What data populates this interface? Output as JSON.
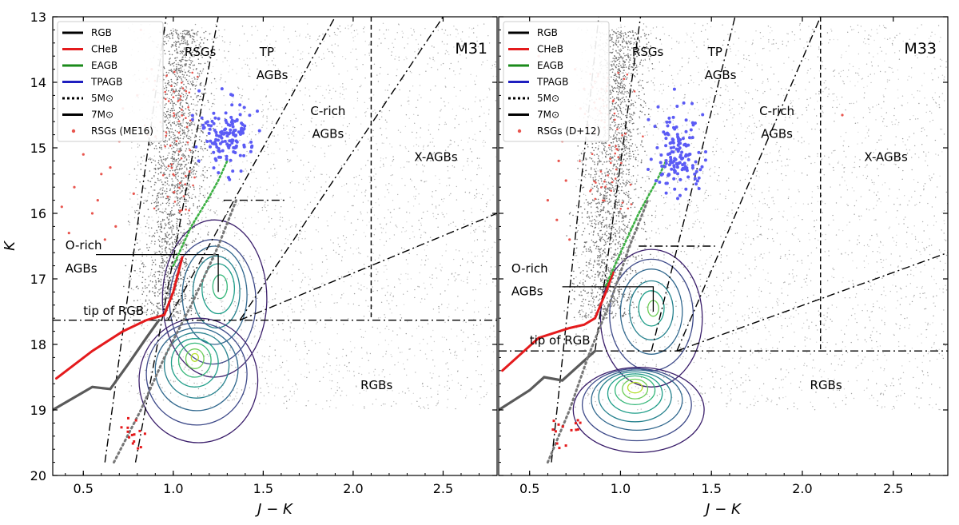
{
  "chart_data": [
    {
      "type": "scatter",
      "panel_label": "M31",
      "xlabel": "J − K",
      "ylabel": "K",
      "xlim": [
        0.33,
        2.8
      ],
      "ylim": [
        20,
        13
      ],
      "y_inverted": true,
      "xticks": [
        0.5,
        1.0,
        1.5,
        2.0,
        2.5
      ],
      "xtick_labels": [
        "0.5",
        "1.0",
        "1.5",
        "2.0",
        "2.5"
      ],
      "yticks": [
        13,
        14,
        15,
        16,
        17,
        18,
        19,
        20
      ],
      "ytick_labels": [
        "13",
        "14",
        "15",
        "16",
        "17",
        "18",
        "19",
        "20"
      ],
      "legend": {
        "position": "top-left",
        "entries": [
          {
            "label": "RGB",
            "style": "solid",
            "color": "#000000"
          },
          {
            "label": "CHeB",
            "style": "solid",
            "color": "#e41a1c"
          },
          {
            "label": "EAGB",
            "style": "solid",
            "color": "#1a8a1a"
          },
          {
            "label": "TPAGB",
            "style": "solid",
            "color": "#1f1fbf"
          },
          {
            "label": "5M⊙",
            "style": "dotted",
            "color": "#000000"
          },
          {
            "label": "7M⊙",
            "style": "solid",
            "color": "#000000"
          },
          {
            "label": "RSGs (ME16)",
            "style": "marker",
            "color": "#e8554e"
          }
        ]
      },
      "region_labels": [
        {
          "text": "RSGs",
          "x": 1.15,
          "y": 13.6
        },
        {
          "text": "TP",
          "x": 1.52,
          "y": 13.6
        },
        {
          "text": "AGBs",
          "x": 1.55,
          "y": 13.95
        },
        {
          "text": "C-rich",
          "x": 1.86,
          "y": 14.5
        },
        {
          "text": "AGBs",
          "x": 1.86,
          "y": 14.85
        },
        {
          "text": "X-AGBs",
          "x": 2.46,
          "y": 15.2
        },
        {
          "text": "O-rich",
          "x": 0.4,
          "y": 16.55
        },
        {
          "text": "AGBs",
          "x": 0.4,
          "y": 16.9
        },
        {
          "text": "tip of RGB",
          "x": 0.5,
          "y": 17.55
        },
        {
          "text": "RGBs",
          "x": 2.13,
          "y": 18.68
        }
      ],
      "boundaries": {
        "tip_of_rgb_K": 17.63,
        "x_agb_color_cut": 2.1,
        "o_rich_agb_marker": {
          "x": [
            0.57,
            1.25
          ],
          "y": [
            16.63,
            16.63
          ],
          "drop_to_K": 17.2
        },
        "rsg_tpagb_separator": {
          "x": [
            1.28,
            1.62
          ],
          "y": [
            15.8,
            15.8
          ]
        },
        "dashdot_lines": [
          {
            "x": [
              0.62,
              0.96
            ],
            "y": [
              19.8,
              13.0
            ]
          },
          {
            "x": [
              0.79,
              1.25
            ],
            "y": [
              19.8,
              13.0
            ]
          },
          {
            "x": [
              0.97,
              1.9
            ],
            "y": [
              17.63,
              13.0
            ]
          },
          {
            "x": [
              1.37,
              2.5
            ],
            "y": [
              17.63,
              13.0
            ]
          },
          {
            "x": [
              1.37,
              2.8
            ],
            "y": [
              17.63,
              16.0
            ]
          }
        ]
      },
      "isochrones": {
        "RGB": {
          "x": [
            0.33,
            0.55,
            0.65,
            0.75,
            0.85,
            0.92
          ],
          "y": [
            19.0,
            18.65,
            18.68,
            18.3,
            17.9,
            17.63
          ]
        },
        "CHeB": {
          "x": [
            0.35,
            0.55,
            0.72,
            0.85,
            0.95,
            1.0,
            1.05
          ],
          "y": [
            18.52,
            18.1,
            17.8,
            17.63,
            17.55,
            17.2,
            16.67
          ]
        },
        "EAGB": {
          "x": [
            1.0,
            1.1,
            1.2,
            1.25,
            1.3
          ],
          "y": [
            16.8,
            16.2,
            15.75,
            15.5,
            15.2
          ]
        },
        "TPAGB": {
          "x": [
            1.28,
            1.35,
            1.42,
            1.45
          ],
          "y": [
            14.55,
            14.9,
            15.1,
            14.6
          ]
        },
        "5Msun_dotted": {
          "x": [
            0.67,
            0.82,
            0.95,
            1.1,
            1.25,
            1.35
          ],
          "y": [
            19.8,
            19.0,
            18.2,
            17.4,
            16.5,
            15.8
          ]
        }
      },
      "density_contours": [
        {
          "level": 1,
          "color": "#3b1f6b",
          "center": [
            1.23,
            17.3
          ],
          "rx": 0.29,
          "ry": 1.2
        },
        {
          "level": 2,
          "color": "#3e4a89",
          "center": [
            1.22,
            17.35
          ],
          "rx": 0.24,
          "ry": 0.95
        },
        {
          "level": 3,
          "color": "#31688e",
          "center": [
            1.23,
            17.25
          ],
          "rx": 0.18,
          "ry": 0.75
        },
        {
          "level": 4,
          "color": "#26828e",
          "center": [
            1.24,
            17.2
          ],
          "rx": 0.13,
          "ry": 0.55
        },
        {
          "level": 5,
          "color": "#1f9e89",
          "center": [
            1.25,
            17.15
          ],
          "rx": 0.09,
          "ry": 0.38
        },
        {
          "level": 6,
          "color": "#35b779",
          "center": [
            1.26,
            17.12
          ],
          "rx": 0.04,
          "ry": 0.18
        },
        {
          "level": 1,
          "color": "#3b1f6b",
          "center": [
            1.14,
            18.55
          ],
          "rx": 0.33,
          "ry": 0.95
        },
        {
          "level": 2,
          "color": "#3e4a89",
          "center": [
            1.13,
            18.45
          ],
          "rx": 0.28,
          "ry": 0.78
        },
        {
          "level": 3,
          "color": "#31688e",
          "center": [
            1.13,
            18.38
          ],
          "rx": 0.23,
          "ry": 0.63
        },
        {
          "level": 4,
          "color": "#26828e",
          "center": [
            1.13,
            18.32
          ],
          "rx": 0.18,
          "ry": 0.5
        },
        {
          "level": 5,
          "color": "#1f9e89",
          "center": [
            1.12,
            18.28
          ],
          "rx": 0.13,
          "ry": 0.37
        },
        {
          "level": 6,
          "color": "#35b779",
          "center": [
            1.12,
            18.24
          ],
          "rx": 0.09,
          "ry": 0.26
        },
        {
          "level": 7,
          "color": "#6ece58",
          "center": [
            1.12,
            18.22
          ],
          "rx": 0.05,
          "ry": 0.15
        },
        {
          "level": 8,
          "color": "#b5de2b",
          "center": [
            1.12,
            18.2
          ],
          "rx": 0.02,
          "ry": 0.06
        }
      ],
      "tpagb_clump": {
        "center": [
          1.3,
          14.8
        ],
        "spread": [
          0.07,
          0.25
        ]
      },
      "rsg_points": [
        [
          0.45,
          15.6
        ],
        [
          0.55,
          16.0
        ],
        [
          0.6,
          15.4
        ],
        [
          0.38,
          15.9
        ],
        [
          0.5,
          15.1
        ],
        [
          0.7,
          14.9
        ],
        [
          0.65,
          15.3
        ],
        [
          0.72,
          14.4
        ],
        [
          0.8,
          14.2
        ],
        [
          0.78,
          15.7
        ],
        [
          0.82,
          13.2
        ],
        [
          0.42,
          16.3
        ],
        [
          0.58,
          15.8
        ],
        [
          0.68,
          16.2
        ],
        [
          0.62,
          16.4
        ],
        [
          0.88,
          13.8
        ]
      ],
      "field_density": {
        "min_x": 0.75,
        "max_x": 2.8,
        "min_y": 13.1,
        "max_y": 19.0
      }
    },
    {
      "type": "scatter",
      "panel_label": "M33",
      "xlabel": "J − K",
      "ylabel": "K",
      "xlim": [
        0.33,
        2.8
      ],
      "ylim": [
        20,
        13
      ],
      "y_inverted": true,
      "xticks": [
        0.5,
        1.0,
        1.5,
        2.0,
        2.5
      ],
      "xtick_labels": [
        "0.5",
        "1.0",
        "1.5",
        "2.0",
        "2.5"
      ],
      "yticks": [
        13,
        14,
        15,
        16,
        17,
        18,
        19,
        20
      ],
      "ytick_labels": [
        "13",
        "14",
        "15",
        "16",
        "17",
        "18",
        "19",
        "20"
      ],
      "legend": {
        "position": "top-left",
        "entries": [
          {
            "label": "RGB",
            "style": "solid",
            "color": "#000000"
          },
          {
            "label": "CHeB",
            "style": "solid",
            "color": "#e41a1c"
          },
          {
            "label": "EAGB",
            "style": "solid",
            "color": "#1a8a1a"
          },
          {
            "label": "TPAGB",
            "style": "solid",
            "color": "#1f1fbf"
          },
          {
            "label": "5M⊙",
            "style": "dotted",
            "color": "#000000"
          },
          {
            "label": "7M⊙",
            "style": "solid",
            "color": "#000000"
          },
          {
            "label": "RSGs (D+12)",
            "style": "marker",
            "color": "#e8554e"
          }
        ]
      },
      "region_labels": [
        {
          "text": "RSGs",
          "x": 1.15,
          "y": 13.6
        },
        {
          "text": "TP",
          "x": 1.52,
          "y": 13.6
        },
        {
          "text": "AGBs",
          "x": 1.55,
          "y": 13.95
        },
        {
          "text": "C-rich",
          "x": 1.86,
          "y": 14.5
        },
        {
          "text": "AGBs",
          "x": 1.86,
          "y": 14.85
        },
        {
          "text": "X-AGBs",
          "x": 2.46,
          "y": 15.2
        },
        {
          "text": "O-rich",
          "x": 0.4,
          "y": 16.9
        },
        {
          "text": "AGBs",
          "x": 0.4,
          "y": 17.25
        },
        {
          "text": "tip of RGB",
          "x": 0.5,
          "y": 18.0
        },
        {
          "text": "RGBs",
          "x": 2.13,
          "y": 18.68
        }
      ],
      "boundaries": {
        "tip_of_rgb_K": 18.1,
        "x_agb_color_cut": 2.1,
        "o_rich_agb_marker": {
          "x": [
            0.68,
            1.18
          ],
          "y": [
            17.12,
            17.12
          ],
          "drop_to_K": 17.5
        },
        "rsg_tpagb_separator": {
          "x": [
            1.1,
            1.52
          ],
          "y": [
            16.5,
            16.5
          ]
        },
        "dashdot_lines": [
          {
            "x": [
              0.62,
              0.88
            ],
            "y": [
              19.8,
              13.0
            ]
          },
          {
            "x": [
              0.86,
              1.11
            ],
            "y": [
              18.1,
              13.0
            ]
          },
          {
            "x": [
              1.17,
              1.63
            ],
            "y": [
              18.1,
              13.0
            ]
          },
          {
            "x": [
              1.31,
              2.1
            ],
            "y": [
              18.1,
              13.0
            ]
          },
          {
            "x": [
              1.31,
              2.8
            ],
            "y": [
              18.1,
              16.6
            ]
          }
        ]
      },
      "isochrones": {
        "RGB": {
          "x": [
            0.33,
            0.5,
            0.58,
            0.68,
            0.78,
            0.86
          ],
          "y": [
            19.0,
            18.7,
            18.5,
            18.55,
            18.3,
            18.1
          ]
        },
        "CHeB": {
          "x": [
            0.35,
            0.55,
            0.72,
            0.8,
            0.86,
            0.92,
            0.96
          ],
          "y": [
            18.4,
            17.9,
            17.75,
            17.7,
            17.6,
            17.2,
            16.9
          ]
        },
        "EAGB": {
          "x": [
            0.92,
            1.0,
            1.1,
            1.2,
            1.25
          ],
          "y": [
            17.1,
            16.6,
            16.0,
            15.5,
            15.2
          ]
        },
        "TPAGB": {
          "x": [
            1.22,
            1.3,
            1.38,
            1.45
          ],
          "y": [
            14.65,
            15.0,
            15.2,
            15.3
          ]
        },
        "5Msun_dotted": {
          "x": [
            0.6,
            0.72,
            0.82,
            0.95,
            1.05,
            1.15
          ],
          "y": [
            19.8,
            19.0,
            18.2,
            17.3,
            16.5,
            15.8
          ]
        }
      },
      "density_contours": [
        {
          "level": 1,
          "color": "#3b1f6b",
          "center": [
            1.17,
            17.6
          ],
          "rx": 0.28,
          "ry": 1.05
        },
        {
          "level": 2,
          "color": "#3e4a89",
          "center": [
            1.17,
            17.55
          ],
          "rx": 0.23,
          "ry": 0.85
        },
        {
          "level": 3,
          "color": "#31688e",
          "center": [
            1.17,
            17.5
          ],
          "rx": 0.17,
          "ry": 0.65
        },
        {
          "level": 4,
          "color": "#26828e",
          "center": [
            1.17,
            17.48
          ],
          "rx": 0.12,
          "ry": 0.45
        },
        {
          "level": 5,
          "color": "#1f9e89",
          "center": [
            1.17,
            17.45
          ],
          "rx": 0.07,
          "ry": 0.27
        },
        {
          "level": 6,
          "color": "#6ece58",
          "center": [
            1.18,
            17.45
          ],
          "rx": 0.03,
          "ry": 0.12
        },
        {
          "level": 1,
          "color": "#3b1f6b",
          "center": [
            1.1,
            19.0
          ],
          "rx": 0.36,
          "ry": 0.65
        },
        {
          "level": 2,
          "color": "#3e4a89",
          "center": [
            1.09,
            18.92
          ],
          "rx": 0.3,
          "ry": 0.55
        },
        {
          "level": 3,
          "color": "#31688e",
          "center": [
            1.09,
            18.85
          ],
          "rx": 0.25,
          "ry": 0.46
        },
        {
          "level": 4,
          "color": "#26828e",
          "center": [
            1.08,
            18.8
          ],
          "rx": 0.2,
          "ry": 0.38
        },
        {
          "level": 5,
          "color": "#1f9e89",
          "center": [
            1.08,
            18.75
          ],
          "rx": 0.15,
          "ry": 0.3
        },
        {
          "level": 6,
          "color": "#35b779",
          "center": [
            1.08,
            18.7
          ],
          "rx": 0.11,
          "ry": 0.22
        },
        {
          "level": 7,
          "color": "#6ece58",
          "center": [
            1.08,
            18.68
          ],
          "rx": 0.07,
          "ry": 0.15
        },
        {
          "level": 8,
          "color": "#b5de2b",
          "center": [
            1.08,
            18.66
          ],
          "rx": 0.04,
          "ry": 0.08
        }
      ],
      "tpagb_clump": {
        "center": [
          1.32,
          15.1
        ],
        "spread": [
          0.07,
          0.3
        ]
      },
      "rsg_points": [
        [
          0.6,
          15.8
        ],
        [
          0.65,
          16.1
        ],
        [
          0.7,
          15.5
        ],
        [
          0.72,
          16.4
        ],
        [
          0.68,
          14.9
        ],
        [
          0.75,
          13.8
        ],
        [
          0.78,
          14.4
        ],
        [
          0.66,
          15.2
        ],
        [
          0.55,
          13.6
        ],
        [
          0.62,
          14.6
        ],
        [
          2.22,
          14.5
        ],
        [
          0.8,
          14.1
        ]
      ],
      "field_density": {
        "min_x": 0.75,
        "max_x": 2.8,
        "min_y": 13.1,
        "max_y": 19.0
      }
    }
  ]
}
